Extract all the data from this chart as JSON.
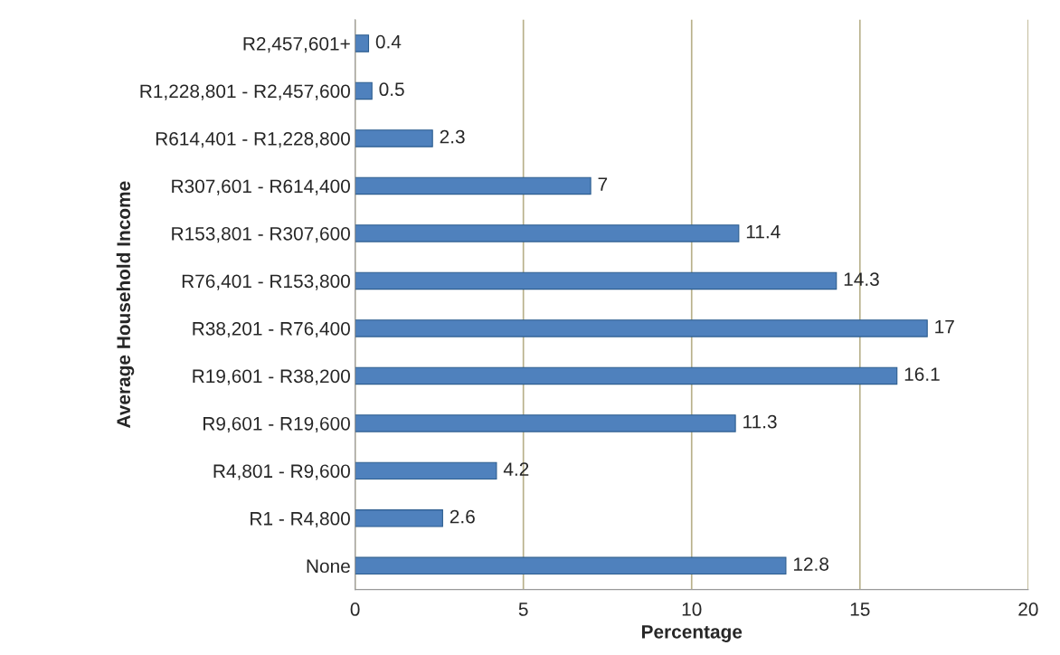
{
  "chart_data": {
    "type": "bar",
    "orientation": "horizontal",
    "xlabel": "Percentage",
    "ylabel": "Average Household Income",
    "categories": [
      "R2,457,601+",
      "R1,228,801 - R2,457,600",
      "R614,401 - R1,228,800",
      "R307,601 - R614,400",
      "R153,801 - R307,600",
      "R76,401 - R153,800",
      "R38,201 - R76,400",
      "R19,601 - R38,200",
      "R9,601 - R19,600",
      "R4,801 - R9,600",
      "R1 - R4,800",
      "None"
    ],
    "values": [
      0.4,
      0.5,
      2.3,
      7,
      11.4,
      14.3,
      17,
      16.1,
      11.3,
      4.2,
      2.6,
      12.8
    ],
    "color": "#4f81bd",
    "xlim": [
      0,
      20
    ],
    "xticks": [
      0,
      5,
      10,
      15,
      20
    ],
    "grid": "x",
    "data_labels": true,
    "legend": false
  }
}
